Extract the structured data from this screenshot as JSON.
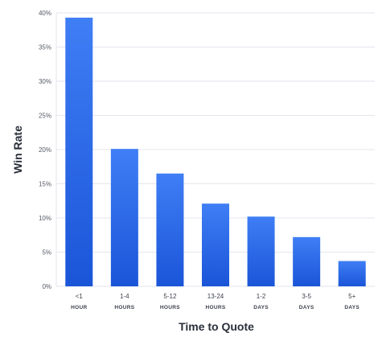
{
  "chart_data": {
    "type": "bar",
    "categories": [
      {
        "line1": "<1",
        "line2": "HOUR"
      },
      {
        "line1": "1-4",
        "line2": "HOURS"
      },
      {
        "line1": "5-12",
        "line2": "HOURS"
      },
      {
        "line1": "13-24",
        "line2": "HOURS"
      },
      {
        "line1": "1-2",
        "line2": "DAYS"
      },
      {
        "line1": "3-5",
        "line2": "DAYS"
      },
      {
        "line1": "5+",
        "line2": "DAYS"
      }
    ],
    "values": [
      39.3,
      20.1,
      16.5,
      12.1,
      10.2,
      7.2,
      3.7
    ],
    "ylabel": "Win Rate",
    "xlabel": "Time to Quote",
    "ylim": [
      0,
      40
    ],
    "yticks": [
      "0%",
      "5%",
      "10%",
      "15%",
      "20%",
      "25%",
      "30%",
      "35%",
      "40%"
    ],
    "grid": true,
    "colors": {
      "bar_top": "#3f7ef5",
      "bar_bottom": "#1a55d8"
    }
  }
}
